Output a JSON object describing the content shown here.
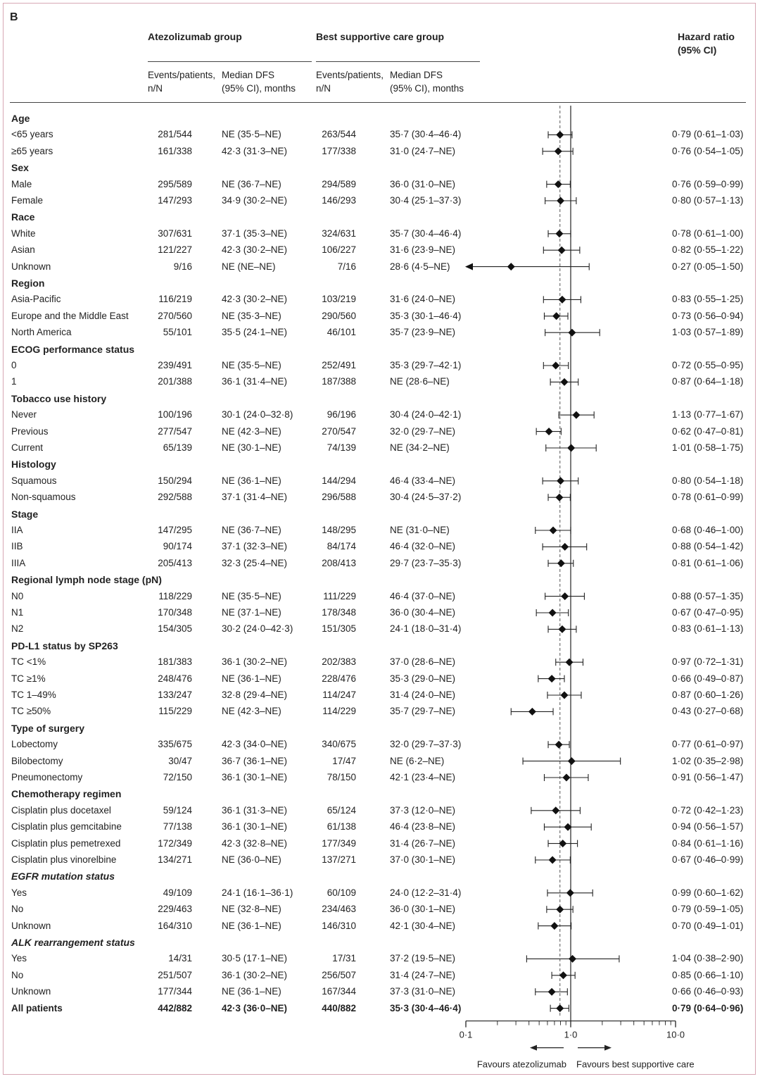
{
  "panel": "B",
  "header": {
    "atezo_group": "Atezolizumab group",
    "bsc_group": "Best supportive care group",
    "hr_line1": "Hazard ratio",
    "hr_line2": "(95% CI)",
    "events_line1": "Events/patients,",
    "events_line2": "n/N",
    "median_line1": "Median DFS",
    "median_line2": "(95% CI), months"
  },
  "axis": {
    "ticks": [
      "0·1",
      "1·0",
      "10·0"
    ],
    "favours_left": "Favours atezolizumab",
    "favours_right": "Favours best supportive care"
  },
  "chart_data": {
    "type": "forest",
    "x_scale": "log",
    "xlim": [
      0.1,
      10
    ],
    "reference_line": 1.0,
    "overall_line": 0.79,
    "rows": [
      {
        "kind": "group",
        "label": "Age",
        "italic": false
      },
      {
        "kind": "row",
        "label": "<65 years",
        "atezo_events": "281/544",
        "atezo_median": "NE (35·5–NE)",
        "bsc_events": "263/544",
        "bsc_median": "35·7 (30·4–46·4)",
        "hr_text": "0·79 (0·61–1·03)",
        "hr": 0.79,
        "lo": 0.61,
        "hi": 1.03
      },
      {
        "kind": "row",
        "label": "≥65 years",
        "atezo_events": "161/338",
        "atezo_median": "42·3 (31·3–NE)",
        "bsc_events": "177/338",
        "bsc_median": "31·0 (24·7–NE)",
        "hr_text": "0·76 (0·54–1·05)",
        "hr": 0.76,
        "lo": 0.54,
        "hi": 1.05
      },
      {
        "kind": "group",
        "label": "Sex",
        "italic": false
      },
      {
        "kind": "row",
        "label": "Male",
        "atezo_events": "295/589",
        "atezo_median": "NE (36·7–NE)",
        "bsc_events": "294/589",
        "bsc_median": "36·0 (31·0–NE)",
        "hr_text": "0·76 (0·59–0·99)",
        "hr": 0.76,
        "lo": 0.59,
        "hi": 0.99
      },
      {
        "kind": "row",
        "label": "Female",
        "atezo_events": "147/293",
        "atezo_median": "34·9 (30·2–NE)",
        "bsc_events": "146/293",
        "bsc_median": "30·4 (25·1–37·3)",
        "hr_text": "0·80 (0·57–1·13)",
        "hr": 0.8,
        "lo": 0.57,
        "hi": 1.13
      },
      {
        "kind": "group",
        "label": "Race",
        "italic": false
      },
      {
        "kind": "row",
        "label": "White",
        "atezo_events": "307/631",
        "atezo_median": "37·1 (35·3–NE)",
        "bsc_events": "324/631",
        "bsc_median": "35·7 (30·4–46·4)",
        "hr_text": "0·78 (0·61–1·00)",
        "hr": 0.78,
        "lo": 0.61,
        "hi": 1.0
      },
      {
        "kind": "row",
        "label": "Asian",
        "atezo_events": "121/227",
        "atezo_median": "42·3 (30·2–NE)",
        "bsc_events": "106/227",
        "bsc_median": "31·6 (23·9–NE)",
        "hr_text": "0·82 (0·55–1·22)",
        "hr": 0.82,
        "lo": 0.55,
        "hi": 1.22
      },
      {
        "kind": "row",
        "label": "Unknown",
        "atezo_events": "9/16",
        "atezo_median": "NE (NE–NE)",
        "bsc_events": "7/16",
        "bsc_median": "28·6 (4·5–NE)",
        "hr_text": "0·27 (0·05–1·50)",
        "hr": 0.27,
        "lo": 0.05,
        "hi": 1.5
      },
      {
        "kind": "group",
        "label": "Region",
        "italic": false
      },
      {
        "kind": "row",
        "label": "Asia-Pacific",
        "atezo_events": "116/219",
        "atezo_median": "42·3 (30·2–NE)",
        "bsc_events": "103/219",
        "bsc_median": "31·6 (24·0–NE)",
        "hr_text": "0·83 (0·55–1·25)",
        "hr": 0.83,
        "lo": 0.55,
        "hi": 1.25
      },
      {
        "kind": "row",
        "label": "Europe and the Middle East",
        "atezo_events": "270/560",
        "atezo_median": "NE (35·3–NE)",
        "bsc_events": "290/560",
        "bsc_median": "35·3 (30·1–46·4)",
        "hr_text": "0·73 (0·56–0·94)",
        "hr": 0.73,
        "lo": 0.56,
        "hi": 0.94
      },
      {
        "kind": "row",
        "label": "North America",
        "atezo_events": "55/101",
        "atezo_median": "35·5 (24·1–NE)",
        "bsc_events": "46/101",
        "bsc_median": "35·7 (23·9–NE)",
        "hr_text": "1·03 (0·57–1·89)",
        "hr": 1.03,
        "lo": 0.57,
        "hi": 1.89
      },
      {
        "kind": "group",
        "label": "ECOG performance status",
        "italic": false
      },
      {
        "kind": "row",
        "label": "0",
        "atezo_events": "239/491",
        "atezo_median": "NE (35·5–NE)",
        "bsc_events": "252/491",
        "bsc_median": "35·3 (29·7–42·1)",
        "hr_text": "0·72 (0·55–0·95)",
        "hr": 0.72,
        "lo": 0.55,
        "hi": 0.95
      },
      {
        "kind": "row",
        "label": "1",
        "atezo_events": "201/388",
        "atezo_median": "36·1 (31·4–NE)",
        "bsc_events": "187/388",
        "bsc_median": "NE (28·6–NE)",
        "hr_text": "0·87 (0·64–1·18)",
        "hr": 0.87,
        "lo": 0.64,
        "hi": 1.18
      },
      {
        "kind": "group",
        "label": "Tobacco use history",
        "italic": false
      },
      {
        "kind": "row",
        "label": "Never",
        "atezo_events": "100/196",
        "atezo_median": "30·1 (24·0–32·8)",
        "bsc_events": "96/196",
        "bsc_median": "30·4 (24·0–42·1)",
        "hr_text": "1·13 (0·77–1·67)",
        "hr": 1.13,
        "lo": 0.77,
        "hi": 1.67
      },
      {
        "kind": "row",
        "label": "Previous",
        "atezo_events": "277/547",
        "atezo_median": "NE (42·3–NE)",
        "bsc_events": "270/547",
        "bsc_median": "32·0 (29·7–NE)",
        "hr_text": "0·62 (0·47–0·81)",
        "hr": 0.62,
        "lo": 0.47,
        "hi": 0.81
      },
      {
        "kind": "row",
        "label": "Current",
        "atezo_events": "65/139",
        "atezo_median": "NE (30·1–NE)",
        "bsc_events": "74/139",
        "bsc_median": "NE (34·2–NE)",
        "hr_text": "1·01 (0·58–1·75)",
        "hr": 1.01,
        "lo": 0.58,
        "hi": 1.75
      },
      {
        "kind": "group",
        "label": "Histology",
        "italic": false
      },
      {
        "kind": "row",
        "label": "Squamous",
        "atezo_events": "150/294",
        "atezo_median": "NE (36·1–NE)",
        "bsc_events": "144/294",
        "bsc_median": "46·4 (33·4–NE)",
        "hr_text": "0·80 (0·54–1·18)",
        "hr": 0.8,
        "lo": 0.54,
        "hi": 1.18
      },
      {
        "kind": "row",
        "label": "Non-squamous",
        "atezo_events": "292/588",
        "atezo_median": "37·1 (31·4–NE)",
        "bsc_events": "296/588",
        "bsc_median": "30·4 (24·5–37·2)",
        "hr_text": "0·78 (0·61–0·99)",
        "hr": 0.78,
        "lo": 0.61,
        "hi": 0.99
      },
      {
        "kind": "group",
        "label": "Stage",
        "italic": false
      },
      {
        "kind": "row",
        "label": "IIA",
        "atezo_events": "147/295",
        "atezo_median": "NE (36·7–NE)",
        "bsc_events": "148/295",
        "bsc_median": "NE (31·0–NE)",
        "hr_text": "0·68 (0·46–1·00)",
        "hr": 0.68,
        "lo": 0.46,
        "hi": 1.0
      },
      {
        "kind": "row",
        "label": "IIB",
        "atezo_events": "90/174",
        "atezo_median": "37·1 (32·3–NE)",
        "bsc_events": "84/174",
        "bsc_median": "46·4 (32·0–NE)",
        "hr_text": "0·88 (0·54–1·42)",
        "hr": 0.88,
        "lo": 0.54,
        "hi": 1.42
      },
      {
        "kind": "row",
        "label": "IIIA",
        "atezo_events": "205/413",
        "atezo_median": "32·3 (25·4–NE)",
        "bsc_events": "208/413",
        "bsc_median": "29·7 (23·7–35·3)",
        "hr_text": "0·81 (0·61–1·06)",
        "hr": 0.81,
        "lo": 0.61,
        "hi": 1.06
      },
      {
        "kind": "group",
        "label": "Regional lymph node stage (pN)",
        "italic": false
      },
      {
        "kind": "row",
        "label": "N0",
        "atezo_events": "118/229",
        "atezo_median": "NE (35·5–NE)",
        "bsc_events": "111/229",
        "bsc_median": "46·4 (37·0–NE)",
        "hr_text": "0·88 (0·57–1·35)",
        "hr": 0.88,
        "lo": 0.57,
        "hi": 1.35
      },
      {
        "kind": "row",
        "label": "N1",
        "atezo_events": "170/348",
        "atezo_median": "NE (37·1–NE)",
        "bsc_events": "178/348",
        "bsc_median": "36·0 (30·4–NE)",
        "hr_text": "0·67 (0·47–0·95)",
        "hr": 0.67,
        "lo": 0.47,
        "hi": 0.95
      },
      {
        "kind": "row",
        "label": "N2",
        "atezo_events": "154/305",
        "atezo_median": "30·2 (24·0–42·3)",
        "bsc_events": "151/305",
        "bsc_median": "24·1 (18·0–31·4)",
        "hr_text": "0·83 (0·61–1·13)",
        "hr": 0.83,
        "lo": 0.61,
        "hi": 1.13
      },
      {
        "kind": "group",
        "label": "PD-L1 status by SP263",
        "italic": false
      },
      {
        "kind": "row",
        "label": "TC <1%",
        "atezo_events": "181/383",
        "atezo_median": "36·1 (30·2–NE)",
        "bsc_events": "202/383",
        "bsc_median": "37·0 (28·6–NE)",
        "hr_text": "0·97 (0·72–1·31)",
        "hr": 0.97,
        "lo": 0.72,
        "hi": 1.31
      },
      {
        "kind": "row",
        "label": "TC ≥1%",
        "atezo_events": "248/476",
        "atezo_median": "NE (36·1–NE)",
        "bsc_events": "228/476",
        "bsc_median": "35·3 (29·0–NE)",
        "hr_text": "0·66 (0·49–0·87)",
        "hr": 0.66,
        "lo": 0.49,
        "hi": 0.87
      },
      {
        "kind": "row",
        "label": "TC 1–49%",
        "atezo_events": "133/247",
        "atezo_median": "32·8 (29·4–NE)",
        "bsc_events": "114/247",
        "bsc_median": "31·4 (24·0–NE)",
        "hr_text": "0·87 (0·60–1·26)",
        "hr": 0.87,
        "lo": 0.6,
        "hi": 1.26
      },
      {
        "kind": "row",
        "label": "TC ≥50%",
        "atezo_events": "115/229",
        "atezo_median": "NE (42·3–NE)",
        "bsc_events": "114/229",
        "bsc_median": "35·7 (29·7–NE)",
        "hr_text": "0·43 (0·27–0·68)",
        "hr": 0.43,
        "lo": 0.27,
        "hi": 0.68
      },
      {
        "kind": "group",
        "label": "Type of surgery",
        "italic": false
      },
      {
        "kind": "row",
        "label": "Lobectomy",
        "atezo_events": "335/675",
        "atezo_median": "42·3 (34·0–NE)",
        "bsc_events": "340/675",
        "bsc_median": "32·0 (29·7–37·3)",
        "hr_text": "0·77 (0·61–0·97)",
        "hr": 0.77,
        "lo": 0.61,
        "hi": 0.97
      },
      {
        "kind": "row",
        "label": "Bilobectomy",
        "atezo_events": "30/47",
        "atezo_median": "36·7 (36·1–NE)",
        "bsc_events": "17/47",
        "bsc_median": "NE (6·2–NE)",
        "hr_text": "1·02 (0·35–2·98)",
        "hr": 1.02,
        "lo": 0.35,
        "hi": 2.98
      },
      {
        "kind": "row",
        "label": "Pneumonectomy",
        "atezo_events": "72/150",
        "atezo_median": "36·1 (30·1–NE)",
        "bsc_events": "78/150",
        "bsc_median": "42·1 (23·4–NE)",
        "hr_text": "0·91 (0·56–1·47)",
        "hr": 0.91,
        "lo": 0.56,
        "hi": 1.47
      },
      {
        "kind": "group",
        "label": "Chemotherapy regimen",
        "italic": false
      },
      {
        "kind": "row",
        "label": "Cisplatin plus docetaxel",
        "atezo_events": "59/124",
        "atezo_median": "36·1 (31·3–NE)",
        "bsc_events": "65/124",
        "bsc_median": "37·3 (12·0–NE)",
        "hr_text": "0·72 (0·42–1·23)",
        "hr": 0.72,
        "lo": 0.42,
        "hi": 1.23
      },
      {
        "kind": "row",
        "label": "Cisplatin plus gemcitabine",
        "atezo_events": "77/138",
        "atezo_median": "36·1 (30·1–NE)",
        "bsc_events": "61/138",
        "bsc_median": "46·4 (23·8–NE)",
        "hr_text": "0·94 (0·56–1·57)",
        "hr": 0.94,
        "lo": 0.56,
        "hi": 1.57
      },
      {
        "kind": "row",
        "label": "Cisplatin plus pemetrexed",
        "atezo_events": "172/349",
        "atezo_median": "42·3 (32·8–NE)",
        "bsc_events": "177/349",
        "bsc_median": "31·4 (26·7–NE)",
        "hr_text": "0·84 (0·61–1·16)",
        "hr": 0.84,
        "lo": 0.61,
        "hi": 1.16
      },
      {
        "kind": "row",
        "label": "Cisplatin plus vinorelbine",
        "atezo_events": "134/271",
        "atezo_median": "NE (36·0–NE)",
        "bsc_events": "137/271",
        "bsc_median": "37·0 (30·1–NE)",
        "hr_text": "0·67 (0·46–0·99)",
        "hr": 0.67,
        "lo": 0.46,
        "hi": 0.99
      },
      {
        "kind": "group",
        "label": "EGFR mutation status",
        "italic": true
      },
      {
        "kind": "row",
        "label": "Yes",
        "atezo_events": "49/109",
        "atezo_median": "24·1 (16·1–36·1)",
        "bsc_events": "60/109",
        "bsc_median": "24·0 (12·2–31·4)",
        "hr_text": "0·99 (0·60–1·62)",
        "hr": 0.99,
        "lo": 0.6,
        "hi": 1.62
      },
      {
        "kind": "row",
        "label": "No",
        "atezo_events": "229/463",
        "atezo_median": "NE (32·8–NE)",
        "bsc_events": "234/463",
        "bsc_median": "36·0 (30·1–NE)",
        "hr_text": "0·79 (0·59–1·05)",
        "hr": 0.79,
        "lo": 0.59,
        "hi": 1.05
      },
      {
        "kind": "row",
        "label": "Unknown",
        "atezo_events": "164/310",
        "atezo_median": "NE (36·1–NE)",
        "bsc_events": "146/310",
        "bsc_median": "42·1 (30·4–NE)",
        "hr_text": "0·70 (0·49–1·01)",
        "hr": 0.7,
        "lo": 0.49,
        "hi": 1.01
      },
      {
        "kind": "group",
        "label": "ALK rearrangement status",
        "italic": true
      },
      {
        "kind": "row",
        "label": "Yes",
        "atezo_events": "14/31",
        "atezo_median": "30·5 (17·1–NE)",
        "bsc_events": "17/31",
        "bsc_median": "37·2 (19·5–NE)",
        "hr_text": "1·04 (0·38–2·90)",
        "hr": 1.04,
        "lo": 0.38,
        "hi": 2.9
      },
      {
        "kind": "row",
        "label": "No",
        "atezo_events": "251/507",
        "atezo_median": "36·1 (30·2–NE)",
        "bsc_events": "256/507",
        "bsc_median": "31·4 (24·7–NE)",
        "hr_text": "0·85 (0·66–1·10)",
        "hr": 0.85,
        "lo": 0.66,
        "hi": 1.1
      },
      {
        "kind": "row",
        "label": "Unknown",
        "atezo_events": "177/344",
        "atezo_median": "NE (36·1–NE)",
        "bsc_events": "167/344",
        "bsc_median": "37·3 (31·0–NE)",
        "hr_text": "0·66 (0·46–0·93)",
        "hr": 0.66,
        "lo": 0.46,
        "hi": 0.93
      },
      {
        "kind": "total",
        "label": "All patients",
        "atezo_events": "442/882",
        "atezo_median": "42·3 (36·0–NE)",
        "bsc_events": "440/882",
        "bsc_median": "35·3 (30·4–46·4)",
        "hr_text": "0·79 (0·64–0·96)",
        "hr": 0.79,
        "lo": 0.64,
        "hi": 0.96
      }
    ]
  }
}
